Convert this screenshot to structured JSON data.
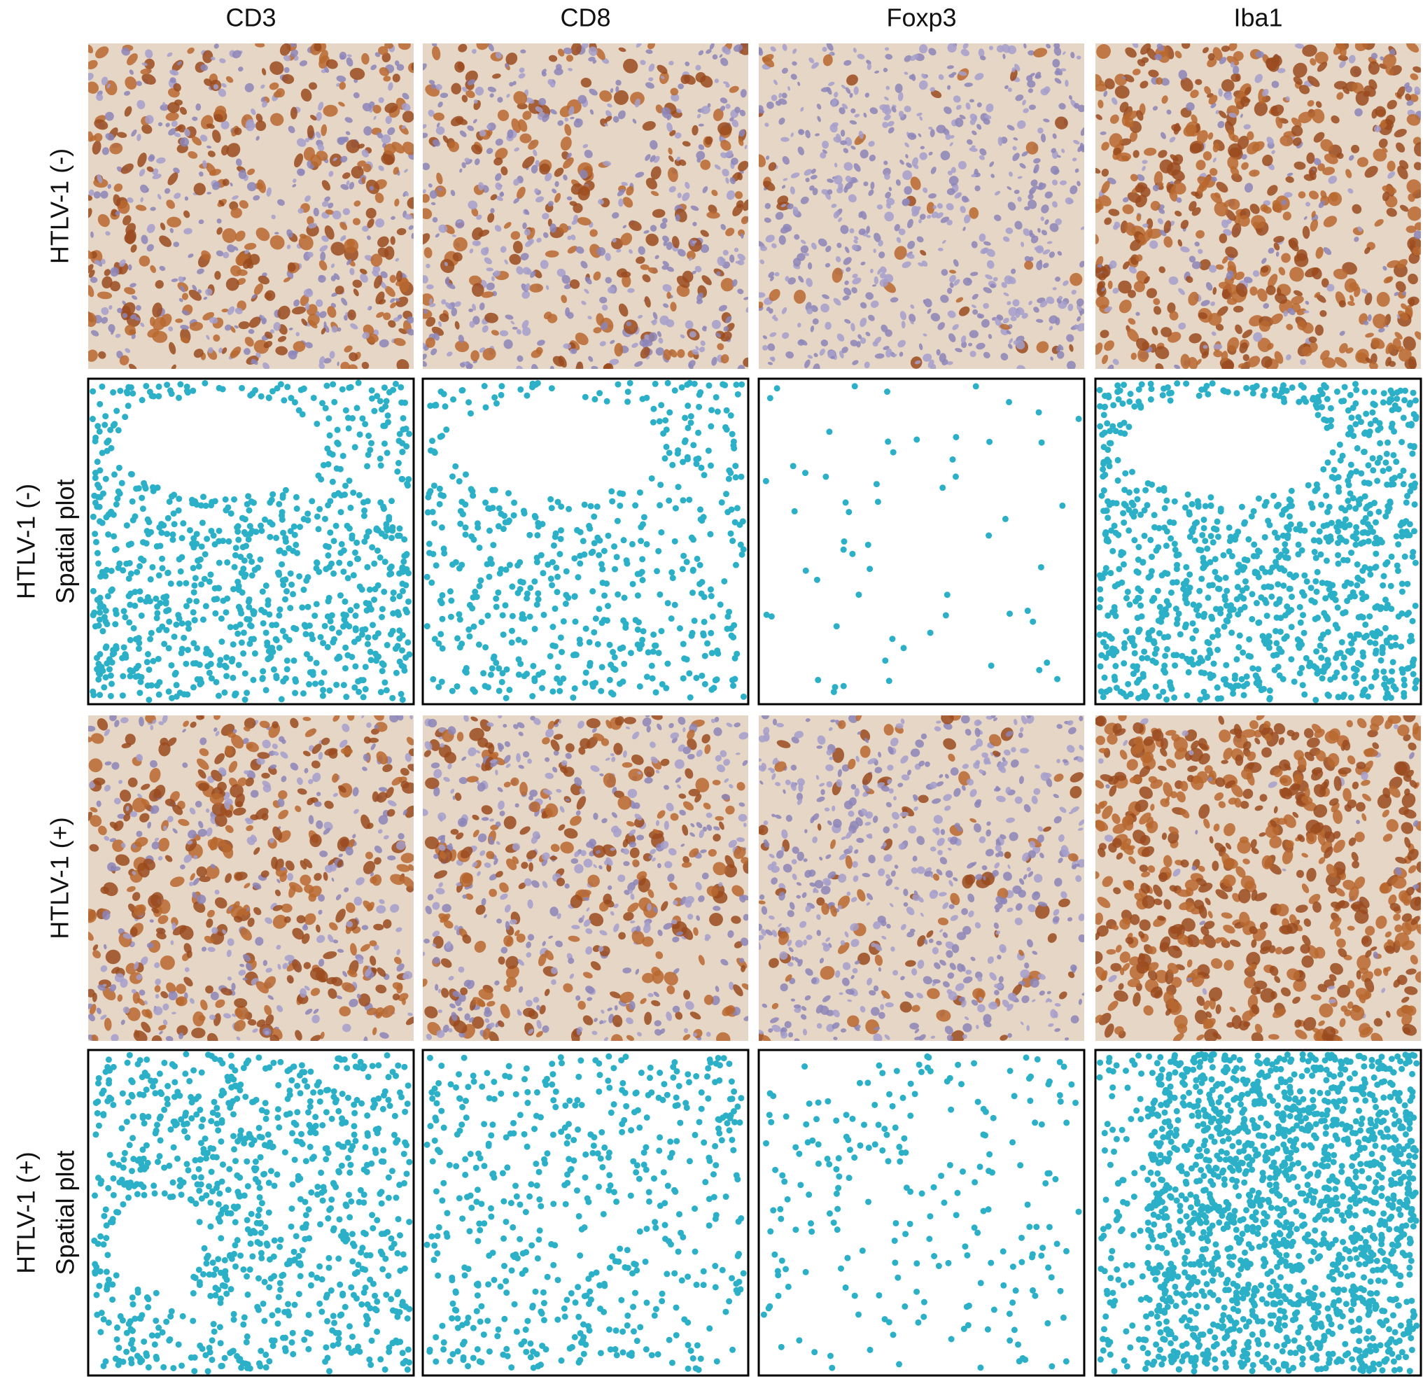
{
  "column_headers": [
    "CD3",
    "CD8",
    "Foxp3",
    "Iba1"
  ],
  "row_labels": [
    [
      "HTLV-1 (-)"
    ],
    [
      "HTLV-1 (-)",
      "Spatial plot"
    ],
    [
      "HTLV-1 (+)"
    ],
    [
      "HTLV-1 (+)",
      "Spatial plot"
    ]
  ]
}
